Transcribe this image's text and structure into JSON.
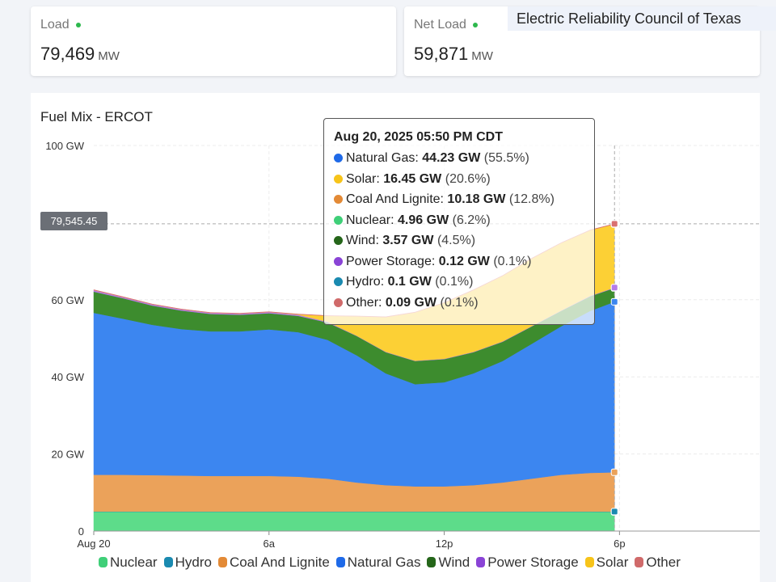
{
  "header": {
    "region_label": "Electric Reliability Council of Texas",
    "cards": [
      {
        "label": "Load",
        "value": "79,469",
        "unit": "MW",
        "status_color": "#2db84d"
      },
      {
        "label": "Net Load",
        "value": "59,871",
        "unit": "MW",
        "status_color": "#2db84d"
      }
    ]
  },
  "chart_data": {
    "type": "area",
    "stacked": true,
    "title": "Fuel Mix - ERCOT",
    "xlabel": "",
    "ylabel": "",
    "x_unit": "hours since Aug 20 00:00 CDT",
    "xlim": [
      0,
      24
    ],
    "ylim": [
      0,
      100
    ],
    "x_ticks": [
      {
        "value": 0,
        "label": "Aug 20"
      },
      {
        "value": 6,
        "label": "6a"
      },
      {
        "value": 12,
        "label": "12p"
      },
      {
        "value": 18,
        "label": "6p"
      }
    ],
    "y_ticks": [
      {
        "value": 0,
        "label": "0"
      },
      {
        "value": 20,
        "label": "20 GW"
      },
      {
        "value": 40,
        "label": "40 GW"
      },
      {
        "value": 60,
        "label": "60 GW"
      },
      {
        "value": 100,
        "label": "100 GW"
      }
    ],
    "grid": true,
    "legend_position": "bottom",
    "x": [
      0,
      1,
      2,
      3,
      4,
      5,
      6,
      7,
      8,
      9,
      10,
      11,
      12,
      13,
      14,
      15,
      16,
      17,
      17.83
    ],
    "series": [
      {
        "name": "Nuclear",
        "color": "#5ddc8a",
        "values": [
          5,
          5,
          5,
          5,
          5,
          5,
          5,
          5,
          5,
          5,
          5,
          5,
          5,
          5,
          5,
          5,
          5,
          5,
          4.96
        ]
      },
      {
        "name": "Hydro",
        "color": "#1a8ab0",
        "values": [
          0.1,
          0.1,
          0.1,
          0.1,
          0.1,
          0.1,
          0.1,
          0.1,
          0.1,
          0.1,
          0.1,
          0.1,
          0.1,
          0.1,
          0.1,
          0.1,
          0.1,
          0.1,
          0.1
        ]
      },
      {
        "name": "Coal And Lignite",
        "color": "#eba25a",
        "values": [
          9.5,
          9.5,
          9.4,
          9.3,
          9.2,
          9.2,
          9.2,
          9,
          8.5,
          7.5,
          6.8,
          6.5,
          6.5,
          6.8,
          7.5,
          8.5,
          9.5,
          10,
          10.18
        ]
      },
      {
        "name": "Natural Gas",
        "color": "#3c86f0",
        "values": [
          42,
          40.5,
          39,
          38,
          37.5,
          37.5,
          38,
          37.5,
          36,
          33,
          29,
          26.5,
          27,
          29,
          31.5,
          35,
          38.5,
          42,
          44.23
        ]
      },
      {
        "name": "Wind",
        "color": "#3d8c2e",
        "values": [
          5.5,
          5.3,
          5,
          4.8,
          4.5,
          4.3,
          4.2,
          4.2,
          4.5,
          5,
          5.5,
          6,
          6,
          5.5,
          5,
          4.5,
          4,
          3.8,
          3.57
        ]
      },
      {
        "name": "Power Storage",
        "color": "#b57be8",
        "values": [
          0.4,
          0.3,
          0.3,
          0.3,
          0.3,
          0.3,
          0.3,
          0.3,
          0.2,
          0.1,
          0.1,
          0.1,
          0.1,
          0.1,
          0.1,
          0.1,
          0.1,
          0.12,
          0.12
        ]
      },
      {
        "name": "Solar",
        "color": "#fcd035",
        "values": [
          0,
          0,
          0,
          0,
          0,
          0,
          0,
          0.1,
          1.5,
          5,
          9,
          12.5,
          14.5,
          16,
          17,
          17.5,
          17.5,
          17,
          16.45
        ]
      },
      {
        "name": "Other",
        "color": "#d97070",
        "values": [
          0.09,
          0.09,
          0.09,
          0.09,
          0.09,
          0.09,
          0.09,
          0.09,
          0.09,
          0.09,
          0.09,
          0.09,
          0.09,
          0.09,
          0.09,
          0.09,
          0.09,
          0.09,
          0.09
        ]
      }
    ],
    "legend": [
      {
        "name": "Nuclear",
        "color": "#3fcf78"
      },
      {
        "name": "Hydro",
        "color": "#1a8ab0"
      },
      {
        "name": "Coal And Lignite",
        "color": "#e38a36"
      },
      {
        "name": "Natural Gas",
        "color": "#1f6ae8"
      },
      {
        "name": "Wind",
        "color": "#25661a"
      },
      {
        "name": "Power Storage",
        "color": "#8a44d6"
      },
      {
        "name": "Solar",
        "color": "#f7c41a"
      },
      {
        "name": "Other",
        "color": "#d06a6a"
      }
    ],
    "crosshair": {
      "x": 17.83,
      "y_label": "79,545.45"
    },
    "tooltip": {
      "title": "Aug 20, 2025 05:50 PM CDT",
      "rows": [
        {
          "name": "Natural Gas",
          "value": "44.23 GW",
          "pct": "(55.5%)",
          "color": "#1f6ae8"
        },
        {
          "name": "Solar",
          "value": "16.45 GW",
          "pct": "(20.6%)",
          "color": "#f7c41a"
        },
        {
          "name": "Coal And Lignite",
          "value": "10.18 GW",
          "pct": "(12.8%)",
          "color": "#e38a36"
        },
        {
          "name": "Nuclear",
          "value": "4.96 GW",
          "pct": "(6.2%)",
          "color": "#3fcf78"
        },
        {
          "name": "Wind",
          "value": "3.57 GW",
          "pct": "(4.5%)",
          "color": "#25661a"
        },
        {
          "name": "Power Storage",
          "value": "0.12 GW",
          "pct": "(0.1%)",
          "color": "#8a44d6"
        },
        {
          "name": "Hydro",
          "value": "0.1 GW",
          "pct": "(0.1%)",
          "color": "#1a8ab0"
        },
        {
          "name": "Other",
          "value": "0.09 GW",
          "pct": "(0.1%)",
          "color": "#d06a6a"
        }
      ]
    }
  }
}
